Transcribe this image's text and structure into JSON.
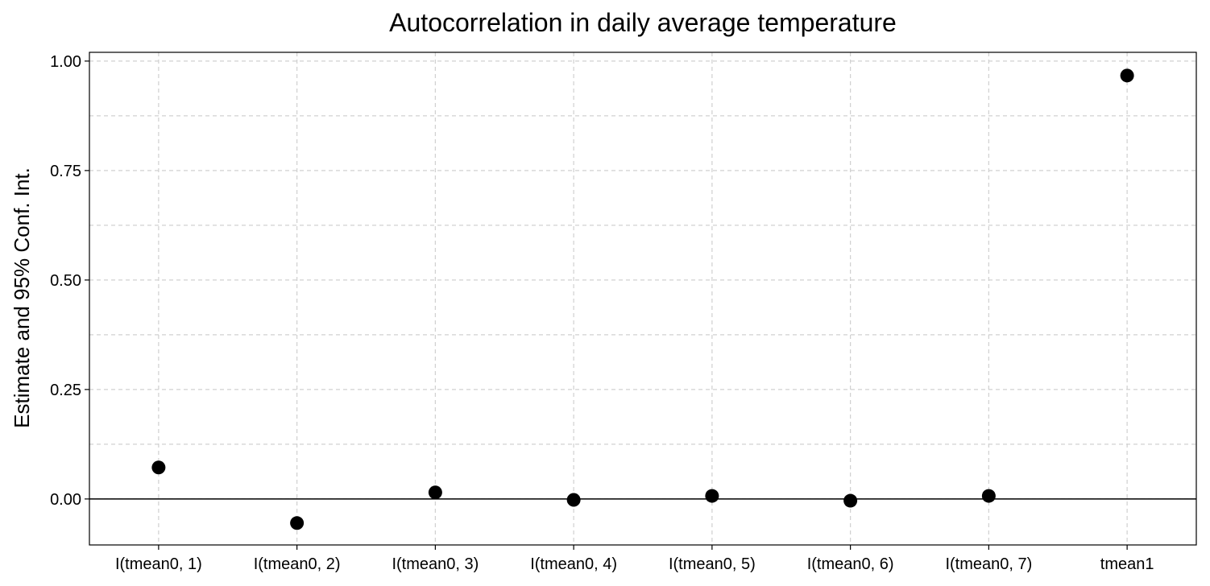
{
  "chart_data": {
    "type": "scatter",
    "title": "Autocorrelation in daily average temperature",
    "xlabel": "",
    "ylabel": "Estimate and 95% Conf. Int.",
    "categories": [
      "I(tmean0, 1)",
      "I(tmean0, 2)",
      "I(tmean0, 3)",
      "I(tmean0, 4)",
      "I(tmean0, 5)",
      "I(tmean0, 6)",
      "I(tmean0, 7)",
      "tmean1"
    ],
    "values": [
      0.072,
      -0.055,
      0.015,
      -0.002,
      0.007,
      -0.004,
      0.007,
      0.967
    ],
    "ylim": [
      -0.105,
      1.02
    ],
    "yticks": [
      0.0,
      0.25,
      0.5,
      0.75,
      1.0
    ],
    "ytick_labels": [
      "0.00",
      "0.25",
      "0.50",
      "0.75",
      "1.00"
    ],
    "minor_gridlines": [
      0.125,
      0.375,
      0.625,
      0.875
    ],
    "reference_line": 0,
    "grid": true,
    "legend": "none"
  }
}
